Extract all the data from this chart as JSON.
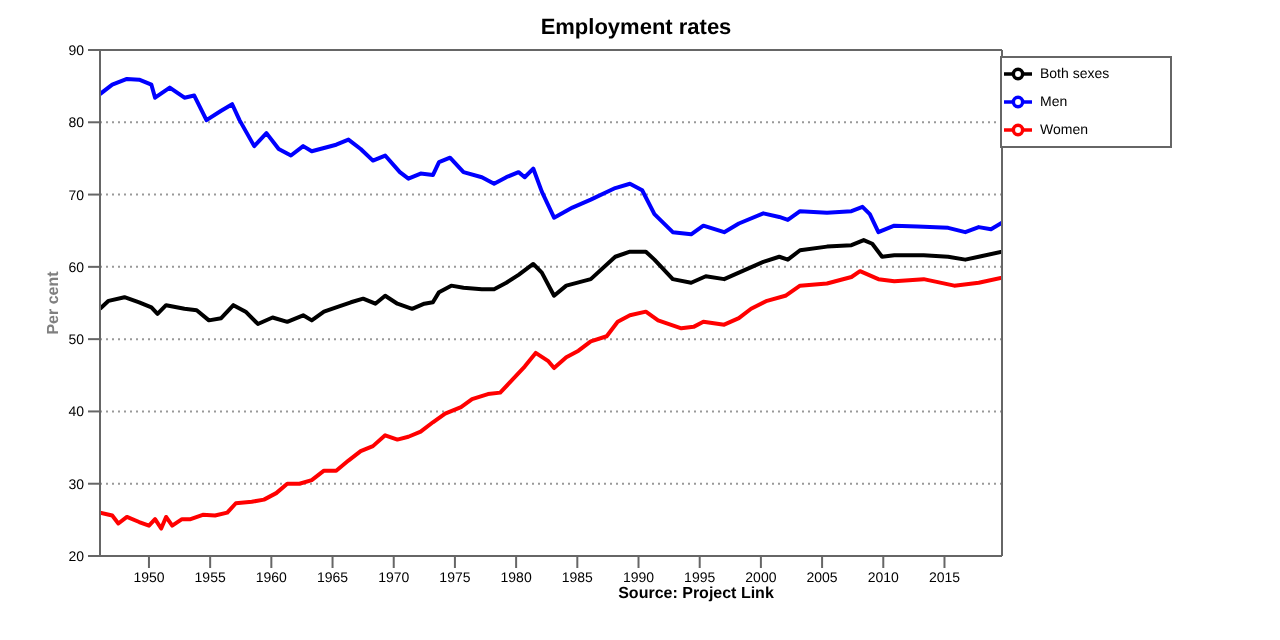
{
  "chart_data": {
    "type": "line",
    "title": "Employment rates",
    "ylabel": "Per cent",
    "annotations": [
      "Source: Project Link"
    ],
    "xlim": [
      1946,
      2019.7
    ],
    "xticks": [
      1950,
      1955,
      1960,
      1965,
      1970,
      1975,
      1980,
      1985,
      1990,
      1995,
      2000,
      2005,
      2010,
      2015
    ],
    "ylim": [
      20,
      90
    ],
    "yticks": [
      20,
      30,
      40,
      50,
      60,
      70,
      80,
      90
    ],
    "grid": "y",
    "legend": "top right",
    "series": [
      {
        "name": "Both sexes",
        "color": "#000000",
        "x": [
          1946,
          1946.7,
          1948,
          1949.2,
          1950.2,
          1950.7,
          1951.4,
          1952.9,
          1953.9,
          1954.9,
          1955.9,
          1956.9,
          1957.9,
          1958.9,
          1960.1,
          1961.3,
          1962.6,
          1963.3,
          1964.3,
          1965.3,
          1966.5,
          1967.5,
          1968.5,
          1969.3,
          1970.3,
          1971.5,
          1972.5,
          1973.2,
          1973.7,
          1974.7,
          1975.7,
          1977.2,
          1978.2,
          1979.2,
          1980.2,
          1981.4,
          1982.1,
          1983.1,
          1984.1,
          1986.1,
          1988.1,
          1989.3,
          1990.6,
          1991.3,
          1992.8,
          1994.3,
          1995.5,
          1997,
          1998.2,
          2000.2,
          2001.5,
          2002.2,
          2003.2,
          2005.4,
          2007.4,
          2008.4,
          2009.1,
          2009.9,
          2010.9,
          2013.3,
          2015.3,
          2016.7,
          2017.8,
          2019.7
        ],
        "values": [
          54.2,
          55.3,
          55.8,
          55.1,
          54.4,
          53.5,
          54.7,
          54.2,
          54.0,
          52.6,
          52.9,
          54.7,
          53.8,
          52.1,
          53.0,
          52.4,
          53.3,
          52.6,
          53.8,
          54.4,
          55.1,
          55.6,
          54.9,
          56.0,
          54.9,
          54.2,
          54.9,
          55.1,
          56.5,
          57.4,
          57.1,
          56.9,
          56.9,
          57.8,
          58.9,
          60.4,
          59.2,
          56.0,
          57.4,
          58.3,
          61.4,
          62.1,
          62.1,
          61.0,
          58.3,
          57.8,
          58.7,
          58.3,
          59.2,
          60.7,
          61.4,
          61.0,
          62.3,
          62.8,
          63.0,
          63.7,
          63.2,
          61.4,
          61.6,
          61.6,
          61.4,
          61.0,
          61.4,
          62.1
        ]
      },
      {
        "name": "Men",
        "color": "#0000ff",
        "x": [
          1946,
          1947,
          1948.2,
          1949.2,
          1950.2,
          1950.5,
          1951.7,
          1952.9,
          1953.7,
          1954.7,
          1955.9,
          1956.8,
          1957.4,
          1958.6,
          1959.6,
          1960.6,
          1961.6,
          1962.6,
          1963.3,
          1965.3,
          1966.3,
          1967.3,
          1968.3,
          1969.3,
          1970.5,
          1971.2,
          1972.2,
          1973.2,
          1973.7,
          1974.6,
          1975.7,
          1977.2,
          1978.2,
          1979.2,
          1980.2,
          1980.7,
          1981.4,
          1982.1,
          1983.1,
          1984.6,
          1986.1,
          1988.1,
          1989.3,
          1990.3,
          1991.3,
          1992.8,
          1994.3,
          1995.3,
          1997,
          1998.2,
          2000.2,
          2001.5,
          2002.2,
          2003.2,
          2005.4,
          2007.4,
          2008.3,
          2008.9,
          2009.6,
          2010.9,
          2012.8,
          2015.3,
          2016.7,
          2017.8,
          2018.8,
          2019.7
        ],
        "values": [
          83.9,
          85.2,
          86.0,
          85.9,
          85.2,
          83.4,
          84.8,
          83.4,
          83.7,
          80.3,
          81.6,
          82.5,
          80.3,
          76.7,
          78.5,
          76.3,
          75.4,
          76.7,
          76.0,
          76.9,
          77.6,
          76.3,
          74.7,
          75.4,
          73.1,
          72.2,
          72.9,
          72.7,
          74.5,
          75.1,
          73.1,
          72.4,
          71.5,
          72.4,
          73.1,
          72.4,
          73.6,
          70.4,
          66.8,
          68.2,
          69.3,
          70.9,
          71.5,
          70.6,
          67.3,
          64.8,
          64.5,
          65.7,
          64.8,
          66.0,
          67.4,
          66.9,
          66.5,
          67.7,
          67.5,
          67.7,
          68.3,
          67.3,
          64.8,
          65.7,
          65.6,
          65.4,
          64.8,
          65.5,
          65.2,
          66.1
        ]
      },
      {
        "name": "Women",
        "color": "#ff0000",
        "x": [
          1946,
          1947,
          1947.5,
          1948.2,
          1949.2,
          1950,
          1950.5,
          1951,
          1951.4,
          1951.9,
          1952.7,
          1953.4,
          1954.4,
          1955.4,
          1956.4,
          1957.1,
          1958.4,
          1959.4,
          1960.4,
          1961.3,
          1962.3,
          1963.3,
          1964.3,
          1965.3,
          1966.3,
          1967.3,
          1968.3,
          1969.3,
          1970.3,
          1971.2,
          1972.2,
          1973.2,
          1974.2,
          1975.5,
          1976.4,
          1977.7,
          1978.7,
          1979.7,
          1980.7,
          1981.6,
          1982.6,
          1983.1,
          1984.1,
          1985.1,
          1986.1,
          1987.4,
          1988.3,
          1989.3,
          1990.6,
          1991.6,
          1993.5,
          1994.5,
          1995.3,
          1997,
          1998.2,
          1999.2,
          2000.5,
          2002,
          2003.2,
          2005.4,
          2007.4,
          2008.1,
          2009.6,
          2010.9,
          2013.3,
          2015.8,
          2017.8,
          2019.7
        ],
        "values": [
          26.0,
          25.6,
          24.5,
          25.4,
          24.7,
          24.2,
          25.1,
          23.8,
          25.4,
          24.2,
          25.1,
          25.1,
          25.7,
          25.6,
          26.0,
          27.3,
          27.5,
          27.8,
          28.7,
          30.0,
          30.0,
          30.5,
          31.8,
          31.8,
          33.2,
          34.5,
          35.2,
          36.7,
          36.1,
          36.5,
          37.2,
          38.5,
          39.7,
          40.6,
          41.7,
          42.4,
          42.6,
          44.4,
          46.2,
          48.1,
          47.0,
          46.0,
          47.5,
          48.4,
          49.7,
          50.4,
          52.4,
          53.3,
          53.8,
          52.6,
          51.5,
          51.7,
          52.4,
          52.0,
          52.9,
          54.2,
          55.3,
          56.0,
          57.4,
          57.7,
          58.6,
          59.4,
          58.3,
          58.0,
          58.3,
          57.4,
          57.8,
          58.5
        ]
      }
    ]
  }
}
